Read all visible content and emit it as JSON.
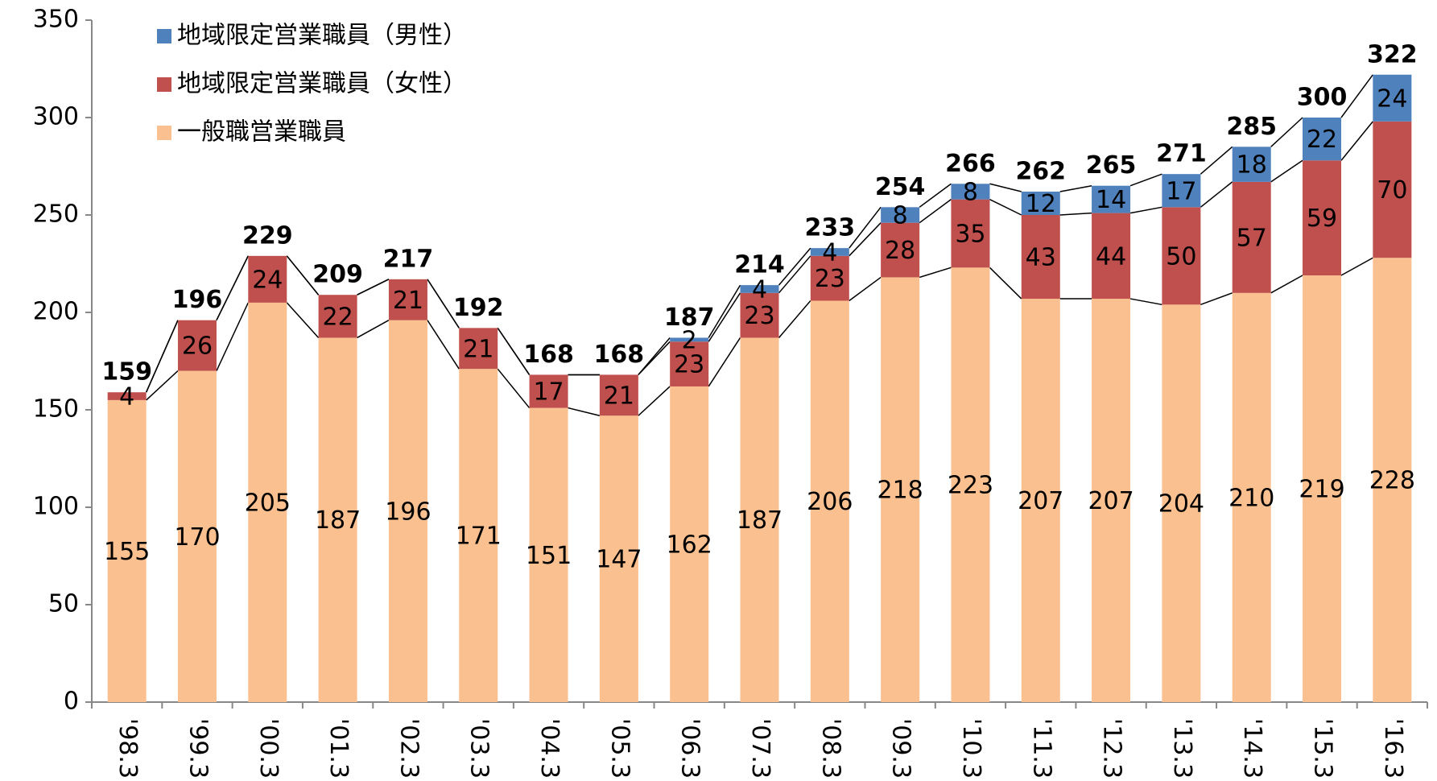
{
  "chart_data": {
    "type": "stacked_bar",
    "categories": [
      "'98.3",
      "'99.3",
      "'00.3",
      "'01.3",
      "'02.3",
      "'03.3",
      "'04.3",
      "'05.3",
      "'06.3",
      "'07.3",
      "'08.3",
      "'09.3",
      "'10.3",
      "'11.3",
      "'12.3",
      "'13.3",
      "'14.3",
      "'15.3",
      "'16.3"
    ],
    "series": [
      {
        "name": "一般職営業職員",
        "color": "#FAC090",
        "values": [
          155,
          170,
          205,
          187,
          196,
          171,
          151,
          147,
          162,
          187,
          206,
          218,
          223,
          207,
          207,
          204,
          210,
          219,
          228
        ]
      },
      {
        "name": "地域限定営業職員（女性）",
        "color": "#C0504D",
        "values": [
          4,
          26,
          24,
          22,
          21,
          21,
          17,
          21,
          23,
          23,
          23,
          28,
          35,
          43,
          44,
          50,
          57,
          59,
          70
        ]
      },
      {
        "name": "地域限定営業職員（男性）",
        "color": "#4F81BD",
        "values": [
          null,
          null,
          null,
          null,
          null,
          null,
          null,
          null,
          2,
          4,
          4,
          8,
          8,
          12,
          14,
          17,
          18,
          22,
          24
        ]
      }
    ],
    "totals": [
      159,
      196,
      229,
      209,
      217,
      192,
      168,
      168,
      187,
      214,
      233,
      254,
      266,
      262,
      265,
      271,
      285,
      300,
      322
    ],
    "ylim": [
      0,
      350
    ],
    "yticks": [
      0,
      50,
      100,
      150,
      200,
      250,
      300,
      350
    ],
    "grid": false,
    "legend": "top-left"
  }
}
